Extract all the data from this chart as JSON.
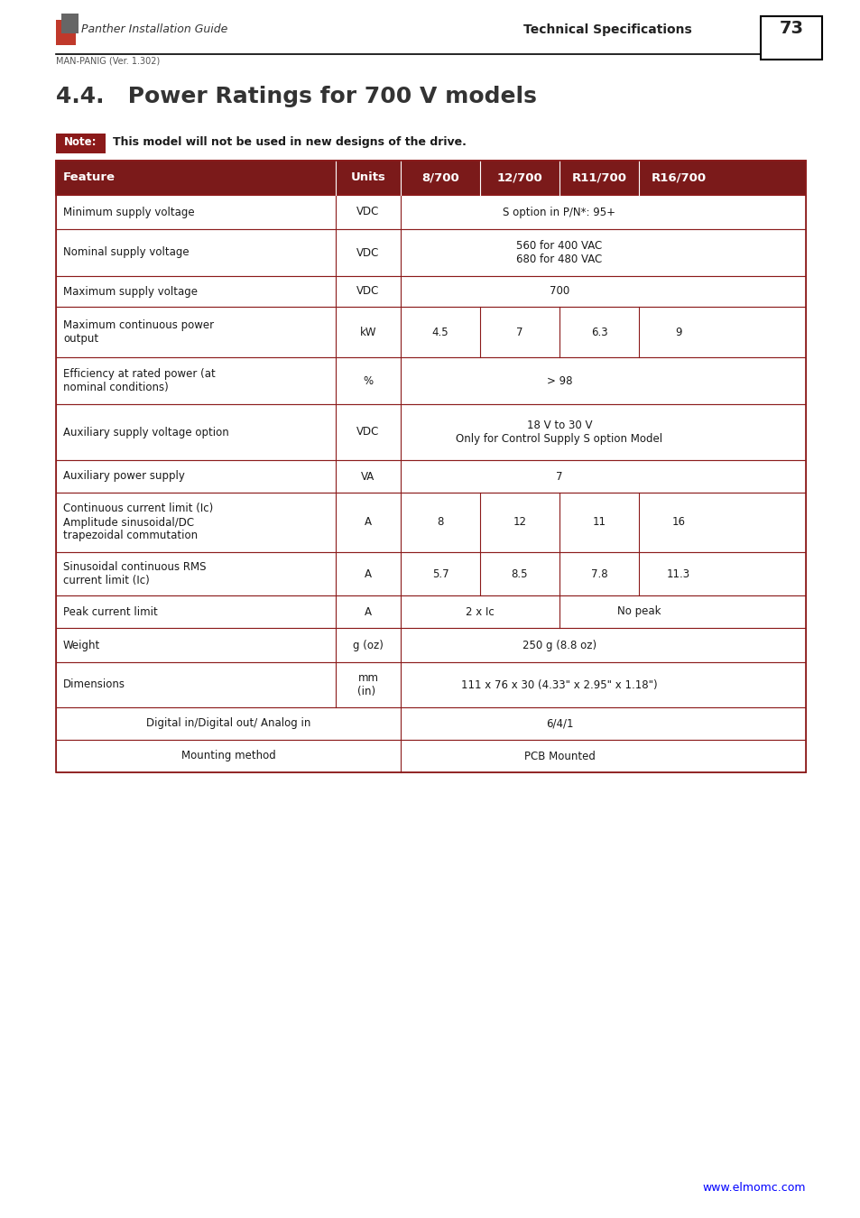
{
  "page_title": "4.4.   Power Ratings for 700 V models",
  "note_text": "This model will not be used in new designs of the drive.",
  "header_bg": "#7B1A1A",
  "header_text_color": "#FFFFFF",
  "table_border_color": "#8B1A1A",
  "header_row": [
    "Feature",
    "Units",
    "8/700",
    "12/700",
    "R11/700",
    "R16/700"
  ],
  "rows": [
    {
      "feature": "Minimum supply voltage",
      "units": "VDC",
      "data": [
        [
          "S option in P/N*: 95+",
          4
        ]
      ],
      "centered_feature": false
    },
    {
      "feature": "Nominal supply voltage",
      "units": "VDC",
      "data": [
        [
          "560 for 400 VAC\n680 for 480 VAC",
          4
        ]
      ],
      "centered_feature": false
    },
    {
      "feature": "Maximum supply voltage",
      "units": "VDC",
      "data": [
        [
          "700",
          4
        ]
      ],
      "centered_feature": false
    },
    {
      "feature": "Maximum continuous power\noutput",
      "units": "kW",
      "data": [
        [
          "4.5",
          1
        ],
        [
          "7",
          1
        ],
        [
          "6.3",
          1
        ],
        [
          "9",
          1
        ]
      ],
      "centered_feature": false
    },
    {
      "feature": "Efficiency at rated power (at\nnominal conditions)",
      "units": "%",
      "data": [
        [
          "> 98",
          4
        ]
      ],
      "centered_feature": false
    },
    {
      "feature": "Auxiliary supply voltage option",
      "units": "VDC",
      "data": [
        [
          "18 V to 30 V\nOnly for Control Supply S option Model",
          4
        ]
      ],
      "centered_feature": false
    },
    {
      "feature": "Auxiliary power supply",
      "units": "VA",
      "data": [
        [
          "7",
          4
        ]
      ],
      "centered_feature": false
    },
    {
      "feature": "Continuous current limit (Ic)\nAmplitude sinusoidal/DC\ntrapezoidal commutation",
      "units": "A",
      "data": [
        [
          "8",
          1
        ],
        [
          "12",
          1
        ],
        [
          "11",
          1
        ],
        [
          "16",
          1
        ]
      ],
      "centered_feature": false
    },
    {
      "feature": "Sinusoidal continuous RMS\ncurrent limit (Ic)",
      "units": "A",
      "data": [
        [
          "5.7",
          1
        ],
        [
          "8.5",
          1
        ],
        [
          "7.8",
          1
        ],
        [
          "11.3",
          1
        ]
      ],
      "centered_feature": false
    },
    {
      "feature": "Peak current limit",
      "units": "A",
      "data": [
        [
          "2 x Ic",
          2
        ],
        [
          "No peak",
          2
        ]
      ],
      "centered_feature": false
    },
    {
      "feature": "Weight",
      "units": "g (oz)",
      "data": [
        [
          "250 g (8.8 oz)",
          4
        ]
      ],
      "centered_feature": false
    },
    {
      "feature": "Dimensions",
      "units": "mm\n(in)",
      "data": [
        [
          "111 x 76 x 30 (4.33\" x 2.95\" x 1.18\")",
          4
        ]
      ],
      "centered_feature": false
    },
    {
      "feature": "Digital in/Digital out/ Analog in",
      "units": "",
      "data": [
        [
          "6/4/1",
          4
        ]
      ],
      "centered_feature": true
    },
    {
      "feature": "Mounting method",
      "units": "",
      "data": [
        [
          "PCB Mounted",
          4
        ]
      ],
      "centered_feature": true
    }
  ],
  "page_bg": "#FFFFFF",
  "text_color": "#1a1a1a",
  "website": "www.elmomc.com",
  "logo_text": "Panther Installation Guide",
  "spec_text": "Technical Specifications",
  "page_num": "73",
  "man_text": "MAN-PANIG (Ver. 1.302)"
}
